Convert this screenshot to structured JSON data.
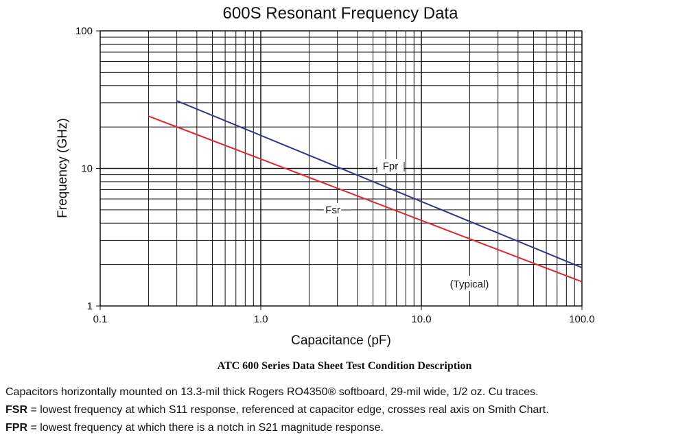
{
  "chart_data": {
    "type": "line",
    "title": "600S Resonant Frequency Data",
    "xlabel": "Capacitance (pF)",
    "ylabel": "Frequency (GHz)",
    "x_scale": "log",
    "y_scale": "log",
    "xlim": [
      0.1,
      100
    ],
    "ylim": [
      1,
      100
    ],
    "x_ticks": [
      "0.1",
      "1.0",
      "10.0",
      "100.0"
    ],
    "y_ticks": [
      "1",
      "10",
      "100"
    ],
    "grid": true,
    "series": [
      {
        "name": "Fpr",
        "color": "#2e3591",
        "x": [
          0.3,
          100
        ],
        "y": [
          31,
          1.9
        ]
      },
      {
        "name": "Fsr",
        "color": "#e0262b",
        "x": [
          0.2,
          100
        ],
        "y": [
          24,
          1.5
        ]
      }
    ],
    "annotations": [
      "Fpr",
      "Fsr",
      "(Typical)"
    ]
  },
  "caption": "ATC 600 Series Data Sheet Test Condition Description",
  "notes": {
    "line1": "Capacitors horizontally mounted on 13.3-mil thick Rogers RO4350® softboard, 29-mil wide, 1/2 oz. Cu traces.",
    "fsr_term": "FSR",
    "fsr_text": " = lowest frequency at which S11 response, referenced at capacitor edge, crosses real axis on Smith Chart.",
    "fpr_term": "FPR",
    "fpr_text": " = lowest frequency at which there is a notch in S21 magnitude response."
  }
}
